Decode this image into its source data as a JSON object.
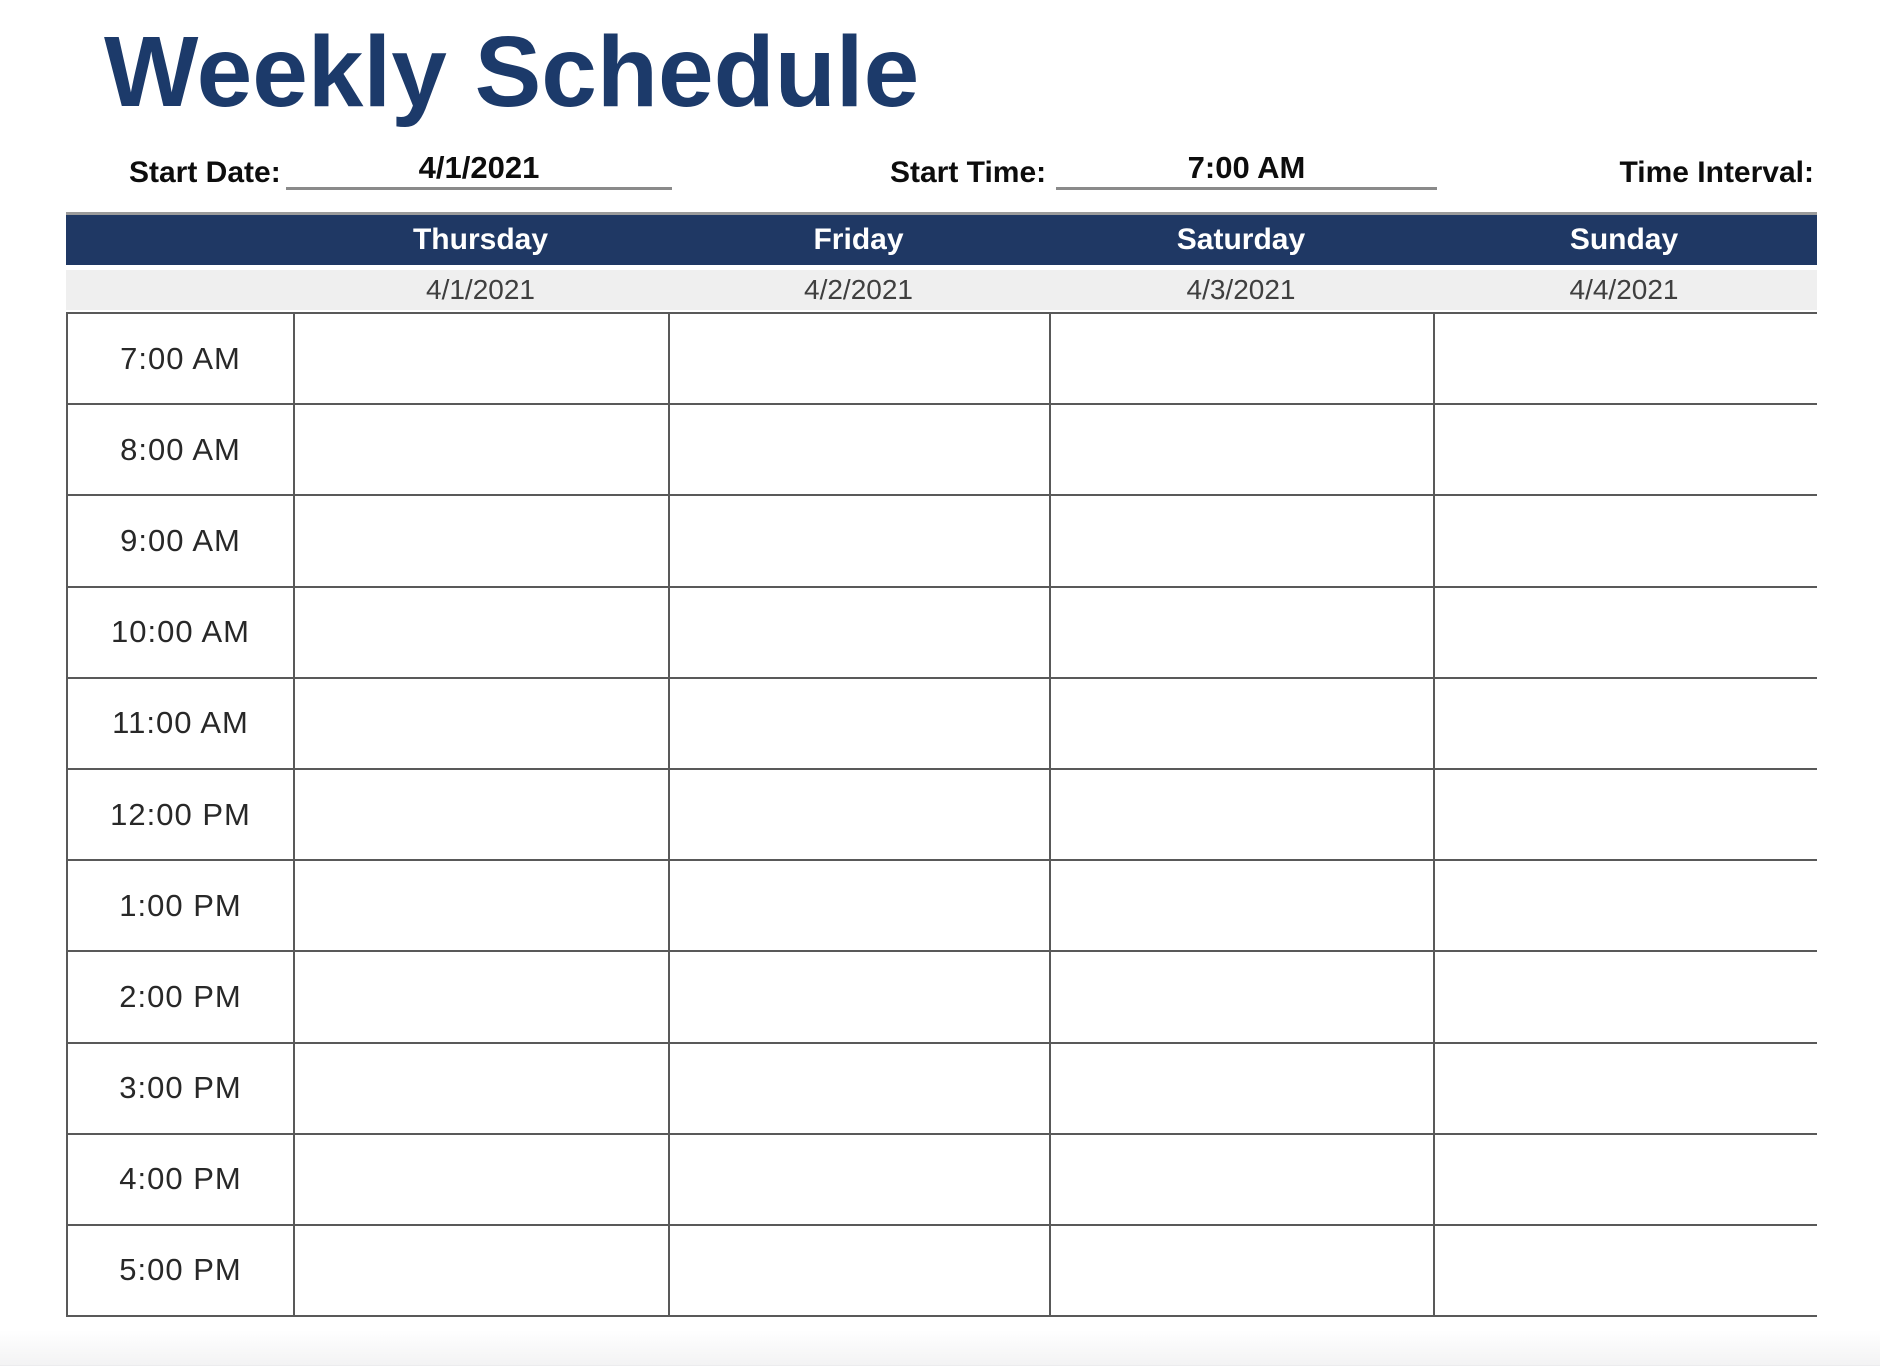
{
  "page": {
    "title": "Weekly Schedule"
  },
  "fields": {
    "start_date": {
      "label": "Start Date:",
      "value": "4/1/2021"
    },
    "start_time": {
      "label": "Start Time:",
      "value": "7:00 AM"
    },
    "time_interval": {
      "label": "Time Interval:",
      "value": ""
    }
  },
  "schedule": {
    "days": [
      {
        "label": "Thursday",
        "date": "4/1/2021"
      },
      {
        "label": "Friday",
        "date": "4/2/2021"
      },
      {
        "label": "Saturday",
        "date": "4/3/2021"
      },
      {
        "label": "Sunday",
        "date": "4/4/2021"
      }
    ],
    "times": [
      "7:00 AM",
      "8:00 AM",
      "9:00 AM",
      "10:00 AM",
      "11:00 AM",
      "12:00 PM",
      "1:00 PM",
      "2:00 PM",
      "3:00 PM",
      "4:00 PM",
      "5:00 PM"
    ]
  },
  "colors": {
    "title_text": "#1c3a6a",
    "day_header_bg": "#1f3864",
    "day_header_text": "#ffffff",
    "date_row_bg": "#efefef",
    "date_row_text": "#3f3f3f",
    "grid_line": "#595959",
    "underline": "#8a8a8a"
  }
}
